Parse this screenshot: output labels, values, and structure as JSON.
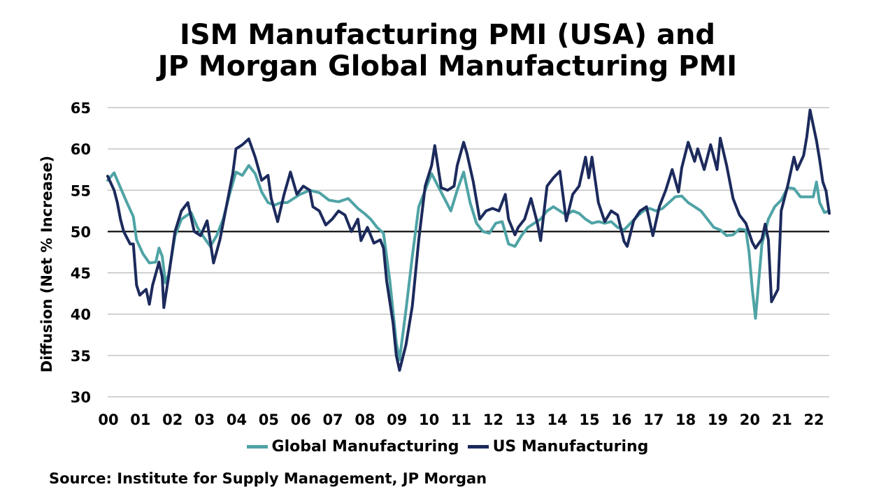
{
  "chart_data": {
    "type": "line",
    "title_line1": "ISM Manufacturing PMI (USA) and",
    "title_line2": "JP Morgan Global Manufacturing PMI",
    "ylabel": "Diffusion (Net % Increase)",
    "source": "Source: Institute for Supply Management, JP Morgan",
    "ylim": [
      30,
      65
    ],
    "yticks": [
      "30",
      "35",
      "40",
      "45",
      "50",
      "55",
      "60",
      "65"
    ],
    "xlim": [
      0,
      22.5
    ],
    "xticks": [
      "00",
      "01",
      "02",
      "03",
      "04",
      "05",
      "06",
      "07",
      "08",
      "09",
      "10",
      "11",
      "12",
      "13",
      "14",
      "15",
      "16",
      "17",
      "18",
      "19",
      "20",
      "21",
      "22"
    ],
    "reference_line": 50,
    "grid": true,
    "legend_position": "bottom",
    "series": [
      {
        "name": "Global Manufacturing",
        "color": "#4fa3a5",
        "points": [
          [
            0,
            56.2
          ],
          [
            0.2,
            57.1
          ],
          [
            0.4,
            55.3
          ],
          [
            0.6,
            53.5
          ],
          [
            0.8,
            51.8
          ],
          [
            0.9,
            49
          ],
          [
            1.1,
            47.3
          ],
          [
            1.3,
            46.2
          ],
          [
            1.5,
            46.3
          ],
          [
            1.6,
            48
          ],
          [
            1.7,
            47
          ],
          [
            1.8,
            43.8
          ],
          [
            1.9,
            44.8
          ],
          [
            2.1,
            49.5
          ],
          [
            2.3,
            51.5
          ],
          [
            2.6,
            52.3
          ],
          [
            2.8,
            50.5
          ],
          [
            3,
            49.3
          ],
          [
            3.2,
            48.2
          ],
          [
            3.4,
            49.5
          ],
          [
            3.6,
            51.5
          ],
          [
            3.8,
            54.5
          ],
          [
            4,
            57.2
          ],
          [
            4.2,
            56.8
          ],
          [
            4.4,
            58
          ],
          [
            4.6,
            57
          ],
          [
            4.8,
            54.8
          ],
          [
            5,
            53.5
          ],
          [
            5.2,
            53.2
          ],
          [
            5.4,
            53.5
          ],
          [
            5.6,
            53.5
          ],
          [
            5.8,
            54
          ],
          [
            6,
            54.5
          ],
          [
            6.3,
            55
          ],
          [
            6.6,
            54.7
          ],
          [
            6.9,
            53.8
          ],
          [
            7.2,
            53.6
          ],
          [
            7.5,
            54
          ],
          [
            7.8,
            52.8
          ],
          [
            8,
            52.2
          ],
          [
            8.2,
            51.5
          ],
          [
            8.4,
            50.5
          ],
          [
            8.6,
            49.8
          ],
          [
            8.8,
            44
          ],
          [
            9,
            36.5
          ],
          [
            9.1,
            34.5
          ],
          [
            9.3,
            40.5
          ],
          [
            9.5,
            47
          ],
          [
            9.7,
            53
          ],
          [
            9.9,
            55
          ],
          [
            10.1,
            57
          ],
          [
            10.3,
            55.5
          ],
          [
            10.5,
            54
          ],
          [
            10.7,
            52.5
          ],
          [
            10.9,
            55
          ],
          [
            11.1,
            57.2
          ],
          [
            11.3,
            53.5
          ],
          [
            11.5,
            51
          ],
          [
            11.7,
            50
          ],
          [
            11.9,
            49.8
          ],
          [
            12.1,
            51
          ],
          [
            12.3,
            51.2
          ],
          [
            12.5,
            48.5
          ],
          [
            12.7,
            48.2
          ],
          [
            12.9,
            49.5
          ],
          [
            13.1,
            50.5
          ],
          [
            13.3,
            51
          ],
          [
            13.5,
            51.5
          ],
          [
            13.7,
            52.5
          ],
          [
            13.9,
            53
          ],
          [
            14.1,
            52.5
          ],
          [
            14.3,
            52
          ],
          [
            14.5,
            52.5
          ],
          [
            14.7,
            52.2
          ],
          [
            14.9,
            51.5
          ],
          [
            15.1,
            51
          ],
          [
            15.3,
            51.2
          ],
          [
            15.5,
            51
          ],
          [
            15.7,
            51.2
          ],
          [
            15.9,
            50.5
          ],
          [
            16.1,
            50.2
          ],
          [
            16.3,
            51
          ],
          [
            16.5,
            51.8
          ],
          [
            16.7,
            52.5
          ],
          [
            16.9,
            52.8
          ],
          [
            17.1,
            52.5
          ],
          [
            17.3,
            52.8
          ],
          [
            17.5,
            53.5
          ],
          [
            17.7,
            54.2
          ],
          [
            17.9,
            54.3
          ],
          [
            18.1,
            53.5
          ],
          [
            18.3,
            53
          ],
          [
            18.5,
            52.5
          ],
          [
            18.7,
            51.5
          ],
          [
            18.9,
            50.5
          ],
          [
            19.1,
            50.2
          ],
          [
            19.3,
            49.5
          ],
          [
            19.5,
            49.6
          ],
          [
            19.7,
            50.3
          ],
          [
            19.9,
            50.2
          ],
          [
            20,
            47.5
          ],
          [
            20.1,
            43
          ],
          [
            20.2,
            39.5
          ],
          [
            20.4,
            48.5
          ],
          [
            20.6,
            51.5
          ],
          [
            20.8,
            53
          ],
          [
            21,
            53.8
          ],
          [
            21.2,
            55.3
          ],
          [
            21.4,
            55.2
          ],
          [
            21.6,
            54.2
          ],
          [
            21.8,
            54.2
          ],
          [
            22,
            54.2
          ],
          [
            22.1,
            56
          ],
          [
            22.2,
            53.5
          ],
          [
            22.35,
            52.3
          ],
          [
            22.5,
            52.5
          ]
        ]
      },
      {
        "name": "US Manufacturing",
        "color": "#1c2a5c",
        "points": [
          [
            0,
            56.7
          ],
          [
            0.2,
            55
          ],
          [
            0.3,
            53.5
          ],
          [
            0.4,
            51.5
          ],
          [
            0.5,
            50
          ],
          [
            0.7,
            48.5
          ],
          [
            0.8,
            48.5
          ],
          [
            0.9,
            43.5
          ],
          [
            1,
            42.3
          ],
          [
            1.2,
            43
          ],
          [
            1.3,
            41.2
          ],
          [
            1.4,
            43.5
          ],
          [
            1.6,
            46.3
          ],
          [
            1.7,
            44.5
          ],
          [
            1.75,
            40.8
          ],
          [
            1.9,
            44.5
          ],
          [
            2.1,
            50
          ],
          [
            2.3,
            52.5
          ],
          [
            2.5,
            53.5
          ],
          [
            2.7,
            50
          ],
          [
            2.9,
            49.5
          ],
          [
            3.1,
            51.3
          ],
          [
            3.3,
            46.2
          ],
          [
            3.5,
            49
          ],
          [
            3.7,
            53
          ],
          [
            3.9,
            57
          ],
          [
            4,
            60
          ],
          [
            4.2,
            60.5
          ],
          [
            4.4,
            61.2
          ],
          [
            4.6,
            59
          ],
          [
            4.8,
            56.2
          ],
          [
            5,
            56.8
          ],
          [
            5.1,
            54
          ],
          [
            5.3,
            51.2
          ],
          [
            5.5,
            54.5
          ],
          [
            5.7,
            57.2
          ],
          [
            5.9,
            54.5
          ],
          [
            6.1,
            55.5
          ],
          [
            6.3,
            55
          ],
          [
            6.4,
            53
          ],
          [
            6.6,
            52.5
          ],
          [
            6.8,
            50.8
          ],
          [
            7,
            51.5
          ],
          [
            7.2,
            52.5
          ],
          [
            7.4,
            52
          ],
          [
            7.6,
            50
          ],
          [
            7.8,
            51.5
          ],
          [
            7.9,
            48.9
          ],
          [
            8.1,
            50.5
          ],
          [
            8.3,
            48.6
          ],
          [
            8.5,
            49
          ],
          [
            8.6,
            48
          ],
          [
            8.7,
            44
          ],
          [
            8.9,
            38.9
          ],
          [
            9,
            35
          ],
          [
            9.1,
            33.2
          ],
          [
            9.3,
            36.3
          ],
          [
            9.5,
            41
          ],
          [
            9.7,
            49
          ],
          [
            9.9,
            55.5
          ],
          [
            10.1,
            58
          ],
          [
            10.2,
            60.4
          ],
          [
            10.4,
            55.3
          ],
          [
            10.6,
            55
          ],
          [
            10.8,
            55.5
          ],
          [
            10.9,
            58
          ],
          [
            11.1,
            60.8
          ],
          [
            11.2,
            59.5
          ],
          [
            11.4,
            56
          ],
          [
            11.6,
            51.5
          ],
          [
            11.8,
            52.5
          ],
          [
            12,
            52.8
          ],
          [
            12.2,
            52.5
          ],
          [
            12.4,
            54.5
          ],
          [
            12.5,
            51.5
          ],
          [
            12.7,
            49.6
          ],
          [
            12.8,
            50.5
          ],
          [
            13,
            51.5
          ],
          [
            13.2,
            54
          ],
          [
            13.4,
            51
          ],
          [
            13.5,
            48.9
          ],
          [
            13.7,
            55.5
          ],
          [
            13.9,
            56.5
          ],
          [
            14.1,
            57.3
          ],
          [
            14.3,
            51.3
          ],
          [
            14.5,
            54.5
          ],
          [
            14.7,
            55.5
          ],
          [
            14.9,
            59
          ],
          [
            15,
            56.5
          ],
          [
            15.1,
            59
          ],
          [
            15.3,
            53.5
          ],
          [
            15.5,
            51.2
          ],
          [
            15.7,
            52.5
          ],
          [
            15.9,
            52
          ],
          [
            16.1,
            48.8
          ],
          [
            16.2,
            48.2
          ],
          [
            16.4,
            51.3
          ],
          [
            16.6,
            52.5
          ],
          [
            16.8,
            53
          ],
          [
            17,
            49.5
          ],
          [
            17.2,
            53
          ],
          [
            17.4,
            55
          ],
          [
            17.6,
            57.5
          ],
          [
            17.8,
            54.8
          ],
          [
            17.9,
            57.7
          ],
          [
            18.1,
            60.8
          ],
          [
            18.3,
            58.5
          ],
          [
            18.4,
            60
          ],
          [
            18.6,
            57.5
          ],
          [
            18.8,
            60.5
          ],
          [
            19,
            57.5
          ],
          [
            19.1,
            61.3
          ],
          [
            19.3,
            58
          ],
          [
            19.5,
            54
          ],
          [
            19.7,
            52
          ],
          [
            19.9,
            51
          ],
          [
            20.1,
            48.7
          ],
          [
            20.2,
            48
          ],
          [
            20.4,
            49.1
          ],
          [
            20.5,
            50.9
          ],
          [
            20.6,
            49
          ],
          [
            20.7,
            41.5
          ],
          [
            20.9,
            43
          ],
          [
            21,
            52.5
          ],
          [
            21.2,
            55.5
          ],
          [
            21.4,
            59
          ],
          [
            21.5,
            57.5
          ],
          [
            21.7,
            59.2
          ],
          [
            21.8,
            61.5
          ],
          [
            21.9,
            64.7
          ],
          [
            22.1,
            61
          ],
          [
            22.2,
            58.7
          ],
          [
            22.3,
            56
          ],
          [
            22.4,
            54.9
          ],
          [
            22.5,
            52.2
          ]
        ]
      }
    ]
  }
}
